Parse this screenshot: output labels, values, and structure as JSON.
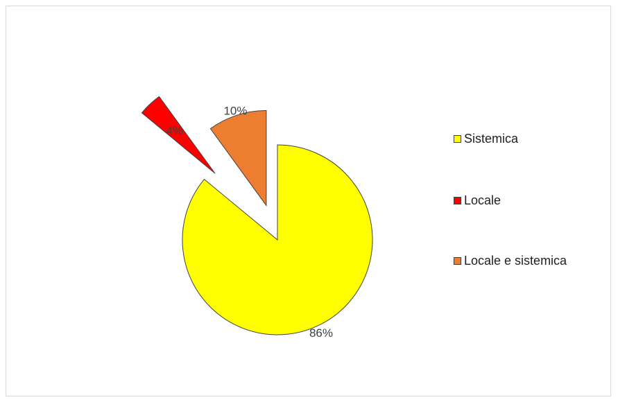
{
  "chart_data": {
    "type": "pie",
    "exploded": true,
    "categories": [
      "Sistemica",
      "Locale",
      "Locale e sistemica"
    ],
    "values": [
      86,
      4,
      10
    ],
    "data_labels": [
      "86%",
      "4%",
      "10%"
    ],
    "colors": [
      "#ffff00",
      "#ff0000",
      "#ed7d31"
    ],
    "legend": {
      "placement": "right",
      "entries": [
        "Sistemica",
        "Locale",
        "Locale e sistemica"
      ]
    }
  }
}
